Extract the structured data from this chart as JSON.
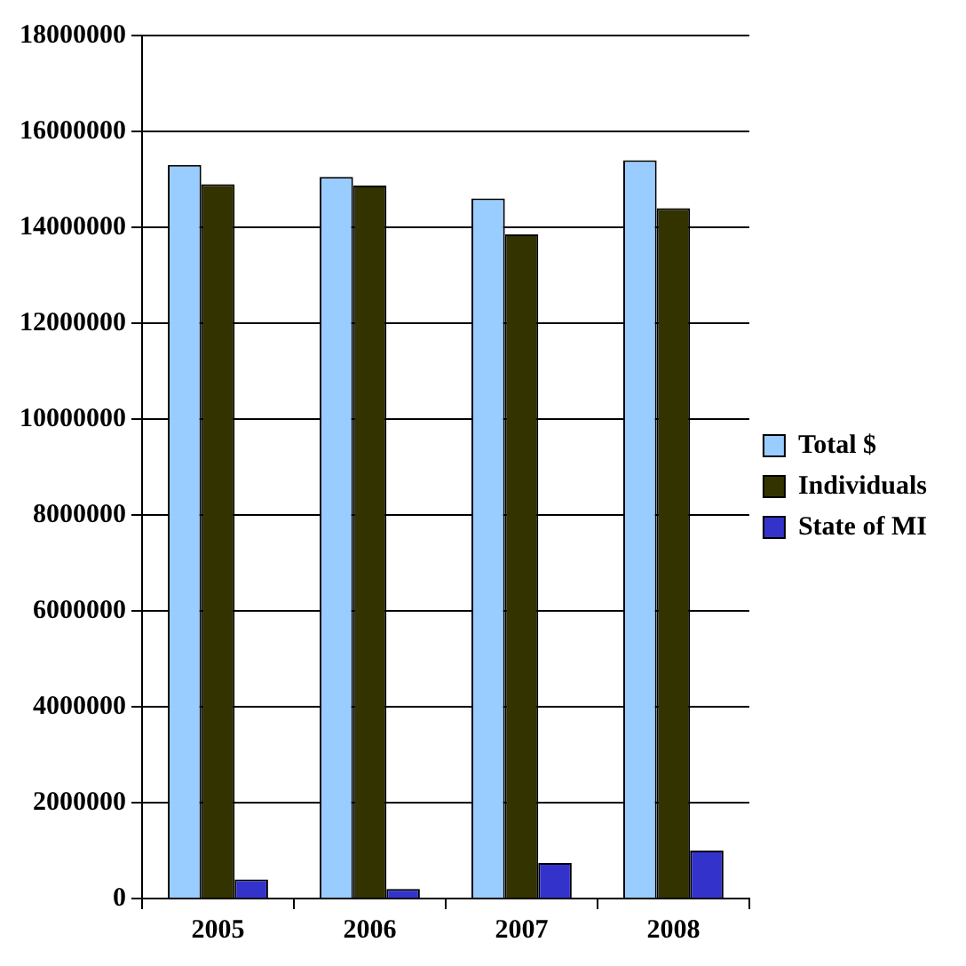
{
  "chart_data": {
    "type": "bar",
    "categories": [
      "2005",
      "2006",
      "2007",
      "2008"
    ],
    "series": [
      {
        "name": "Total $",
        "color": "#99ccff",
        "values": [
          15300000,
          15050000,
          14600000,
          15400000
        ]
      },
      {
        "name": "Individuals",
        "color": "#333300",
        "values": [
          14900000,
          14870000,
          13850000,
          14400000
        ]
      },
      {
        "name": "State of MI",
        "color": "#3333cc",
        "values": [
          400000,
          200000,
          740000,
          1000000
        ]
      }
    ],
    "ylim": [
      0,
      18000000
    ],
    "yticks": [
      0,
      2000000,
      4000000,
      6000000,
      8000000,
      10000000,
      12000000,
      14000000,
      16000000,
      18000000
    ],
    "grid": "y",
    "legend": "right"
  }
}
